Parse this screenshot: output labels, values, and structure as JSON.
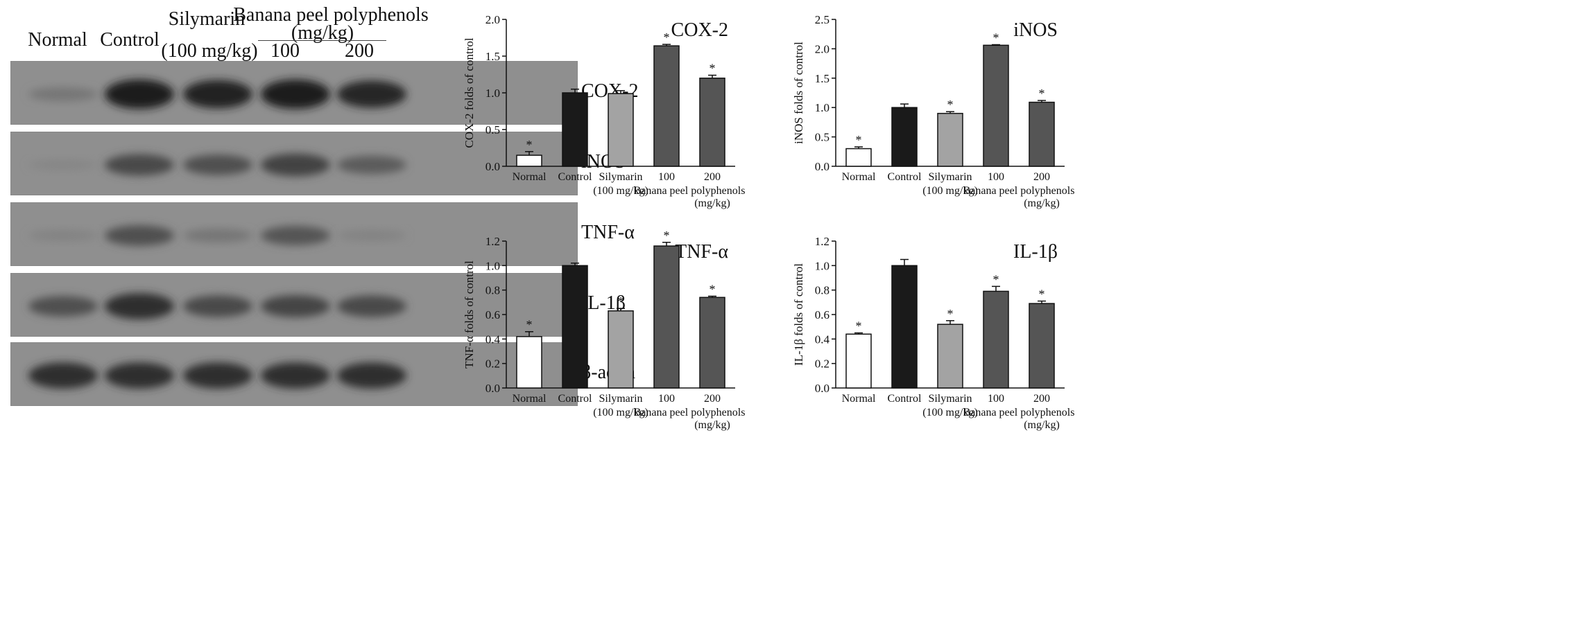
{
  "western_blot": {
    "headers": {
      "normal": "Normal",
      "control": "Control",
      "silymarin_top": "Silymarin",
      "silymarin_bottom": "(100 mg/kg)",
      "banana_top": "Banana peel polyphenols",
      "banana_unit": "(mg/kg)",
      "dose_100": "100",
      "dose_200": "200"
    },
    "rows": [
      {
        "label": "COX-2",
        "intensity": [
          0.25,
          0.95,
          0.9,
          0.95,
          0.85
        ]
      },
      {
        "label": "iNOS",
        "intensity": [
          0.12,
          0.6,
          0.55,
          0.65,
          0.45
        ]
      },
      {
        "label": "TNF-α",
        "intensity": [
          0.15,
          0.55,
          0.25,
          0.5,
          0.15
        ]
      },
      {
        "label": "IL-1β",
        "intensity": [
          0.55,
          0.8,
          0.6,
          0.62,
          0.6
        ]
      },
      {
        "label": "β-actin",
        "intensity": [
          0.8,
          0.8,
          0.8,
          0.8,
          0.8
        ]
      }
    ]
  },
  "chart_data": [
    {
      "type": "bar",
      "title": "COX-2",
      "ylabel": "COX-2 folds of control",
      "ylim": [
        0,
        2.0
      ],
      "yticks": [
        "0.0",
        "0.5",
        "1.0",
        "1.5",
        "2.0"
      ],
      "categories": [
        "Normal",
        "Control",
        "Silymarin",
        "100",
        "200"
      ],
      "category_sublabels": [
        "",
        "",
        "(100 mg/kg)",
        "Banana peel polyphenols",
        "(mg/kg)"
      ],
      "values": [
        0.15,
        1.0,
        0.99,
        1.64,
        1.2
      ],
      "errors": [
        0.05,
        0.05,
        0.04,
        0.02,
        0.04
      ],
      "significant": [
        true,
        false,
        false,
        true,
        true
      ],
      "significance_mark": "*",
      "bar_colors": [
        "#ffffff",
        "#1a1a1a",
        "#a3a3a3",
        "#555555",
        "#555555"
      ]
    },
    {
      "type": "bar",
      "title": "iNOS",
      "ylabel": "iNOS folds of control",
      "ylim": [
        0,
        2.5
      ],
      "yticks": [
        "0.0",
        "0.5",
        "1.0",
        "1.5",
        "2.0",
        "2.5"
      ],
      "categories": [
        "Normal",
        "Control",
        "Silymarin",
        "100",
        "200"
      ],
      "category_sublabels": [
        "",
        "",
        "(100 mg/kg)",
        "Banana peel polyphenols",
        "(mg/kg)"
      ],
      "values": [
        0.3,
        1.0,
        0.9,
        2.06,
        1.09
      ],
      "errors": [
        0.03,
        0.06,
        0.03,
        0.01,
        0.03
      ],
      "significant": [
        true,
        false,
        true,
        true,
        true
      ],
      "significance_mark": "*",
      "bar_colors": [
        "#ffffff",
        "#1a1a1a",
        "#a3a3a3",
        "#555555",
        "#555555"
      ]
    },
    {
      "type": "bar",
      "title": "TNF-α",
      "ylabel": "TNF-α folds of control",
      "ylim": [
        0,
        1.2
      ],
      "yticks": [
        "0.0",
        "0.2",
        "0.4",
        "0.6",
        "0.8",
        "1.0",
        "1.2"
      ],
      "categories": [
        "Normal",
        "Control",
        "Silymarin",
        "100",
        "200"
      ],
      "category_sublabels": [
        "",
        "",
        "(100 mg/kg)",
        "Banana peel polyphenols",
        "(mg/kg)"
      ],
      "values": [
        0.42,
        1.0,
        0.63,
        1.16,
        0.74
      ],
      "errors": [
        0.04,
        0.02,
        0.02,
        0.03,
        0.01
      ],
      "significant": [
        true,
        false,
        true,
        true,
        true
      ],
      "significance_mark": "*",
      "bar_colors": [
        "#ffffff",
        "#1a1a1a",
        "#a3a3a3",
        "#555555",
        "#555555"
      ]
    },
    {
      "type": "bar",
      "title": "IL-1β",
      "ylabel": "IL-1β folds of control",
      "ylim": [
        0,
        1.2
      ],
      "yticks": [
        "0.0",
        "0.2",
        "0.4",
        "0.6",
        "0.8",
        "1.0",
        "1.2"
      ],
      "categories": [
        "Normal",
        "Control",
        "Silymarin",
        "100",
        "200"
      ],
      "category_sublabels": [
        "",
        "",
        "(100 mg/kg)",
        "Banana peel polyphenols",
        "(mg/kg)"
      ],
      "values": [
        0.44,
        1.0,
        0.52,
        0.79,
        0.69
      ],
      "errors": [
        0.01,
        0.05,
        0.03,
        0.04,
        0.02
      ],
      "significant": [
        true,
        false,
        true,
        true,
        true
      ],
      "significance_mark": "*",
      "bar_colors": [
        "#ffffff",
        "#1a1a1a",
        "#a3a3a3",
        "#555555",
        "#555555"
      ]
    }
  ]
}
